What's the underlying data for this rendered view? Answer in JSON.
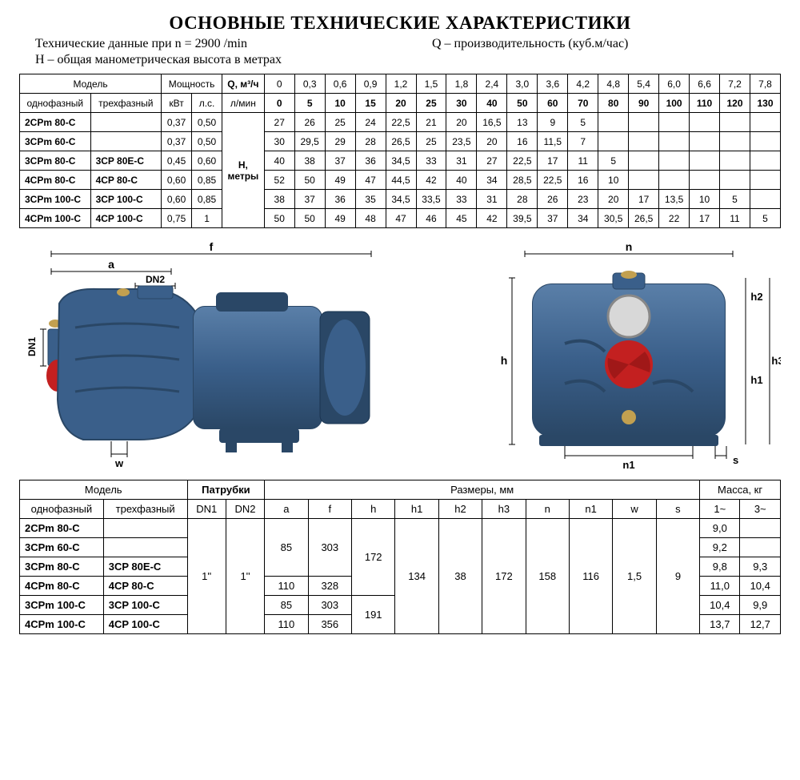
{
  "title": "ОСНОВНЫЕ ТЕХНИЧЕСКИЕ ХАРАКТЕРИСТИКИ",
  "subtitle_left": "Технические данные при n = 2900 /min",
  "subtitle_right": "Q – производительность (куб.м/час)",
  "subtitle2": "H – общая манометрическая высота в метрах",
  "table1": {
    "hdr_model": "Модель",
    "hdr_power": "Мощность",
    "hdr_q_unit1": "Q, м³/ч",
    "hdr_q_unit2": "л/мин",
    "hdr_single": "однофазный",
    "hdr_three": "трехфазный",
    "hdr_kw": "кВт",
    "hdr_hp": "л.с.",
    "hdr_h": "H,",
    "hdr_h2": "метры",
    "q_m3h": [
      "0",
      "0,3",
      "0,6",
      "0,9",
      "1,2",
      "1,5",
      "1,8",
      "2,4",
      "3,0",
      "3,6",
      "4,2",
      "4,8",
      "5,4",
      "6,0",
      "6,6",
      "7,2",
      "7,8"
    ],
    "q_lmin": [
      "0",
      "5",
      "10",
      "15",
      "20",
      "25",
      "30",
      "40",
      "50",
      "60",
      "70",
      "80",
      "90",
      "100",
      "110",
      "120",
      "130"
    ],
    "rows": [
      {
        "m1": "2CPm 80-C",
        "m3": "",
        "kw": "0,37",
        "hp": "0,50",
        "v": [
          "27",
          "26",
          "25",
          "24",
          "22,5",
          "21",
          "20",
          "16,5",
          "13",
          "9",
          "5",
          "",
          "",
          "",
          "",
          "",
          ""
        ]
      },
      {
        "m1": "3CPm 60-C",
        "m3": "",
        "kw": "0,37",
        "hp": "0,50",
        "v": [
          "30",
          "29,5",
          "29",
          "28",
          "26,5",
          "25",
          "23,5",
          "20",
          "16",
          "11,5",
          "7",
          "",
          "",
          "",
          "",
          "",
          ""
        ]
      },
      {
        "m1": "3CPm 80-C",
        "m3": "3CP 80E-C",
        "kw": "0,45",
        "hp": "0,60",
        "v": [
          "40",
          "38",
          "37",
          "36",
          "34,5",
          "33",
          "31",
          "27",
          "22,5",
          "17",
          "11",
          "5",
          "",
          "",
          "",
          "",
          ""
        ]
      },
      {
        "m1": "4CPm 80-C",
        "m3": "4CP 80-C",
        "kw": "0,60",
        "hp": "0,85",
        "v": [
          "52",
          "50",
          "49",
          "47",
          "44,5",
          "42",
          "40",
          "34",
          "28,5",
          "22,5",
          "16",
          "10",
          "",
          "",
          "",
          "",
          ""
        ]
      },
      {
        "m1": "3CPm 100-C",
        "m3": "3CP 100-C",
        "kw": "0,60",
        "hp": "0,85",
        "v": [
          "38",
          "37",
          "36",
          "35",
          "34,5",
          "33,5",
          "33",
          "31",
          "28",
          "26",
          "23",
          "20",
          "17",
          "13,5",
          "10",
          "5",
          ""
        ]
      },
      {
        "m1": "4CPm 100-C",
        "m3": "4CP 100-C",
        "kw": "0,75",
        "hp": "1",
        "v": [
          "50",
          "50",
          "49",
          "48",
          "47",
          "46",
          "45",
          "42",
          "39,5",
          "37",
          "34",
          "30,5",
          "26,5",
          "22",
          "17",
          "11",
          "5"
        ]
      }
    ]
  },
  "table2": {
    "hdr_model": "Модель",
    "hdr_pipes": "Патрубки",
    "hdr_dims": "Размеры, мм",
    "hdr_mass": "Масса, кг",
    "hdr_single": "однофазный",
    "hdr_three": "трехфазный",
    "cols_pipes": [
      "DN1",
      "DN2"
    ],
    "cols_dims": [
      "a",
      "f",
      "h",
      "h1",
      "h2",
      "h3",
      "n",
      "n1",
      "w",
      "s"
    ],
    "cols_mass": [
      "1~",
      "3~"
    ],
    "dn1": "1''",
    "dn2": "1''",
    "shared": {
      "h1": "134",
      "h2": "38",
      "h3": "172",
      "n": "158",
      "n1": "116",
      "w": "1,5",
      "s": "9"
    },
    "rows": [
      {
        "m1": "2CPm 80-C",
        "m3": "",
        "a": "85",
        "f": "303",
        "h": "172",
        "mass1": "9,0",
        "mass3": ""
      },
      {
        "m1": "3CPm 60-C",
        "m3": "",
        "a": "85",
        "f": "303",
        "h": "172",
        "mass1": "9,2",
        "mass3": ""
      },
      {
        "m1": "3CPm 80-C",
        "m3": "3CP 80E-C",
        "a": "85",
        "f": "303",
        "h": "172",
        "mass1": "9,8",
        "mass3": "9,3"
      },
      {
        "m1": "4CPm 80-C",
        "m3": "4CP 80-C",
        "a": "110",
        "f": "328",
        "h": "172",
        "mass1": "11,0",
        "mass3": "10,4"
      },
      {
        "m1": "3CPm 100-C",
        "m3": "3CP 100-C",
        "a": "85",
        "f": "303",
        "h": "191",
        "mass1": "10,4",
        "mass3": "9,9"
      },
      {
        "m1": "4CPm 100-C",
        "m3": "4CP 100-C",
        "a": "110",
        "f": "356",
        "h": "191",
        "mass1": "13,7",
        "mass3": "12,7"
      }
    ]
  },
  "diag": {
    "labels": {
      "f": "f",
      "a": "a",
      "DN1": "DN1",
      "DN2": "DN2",
      "w": "w",
      "n": "n",
      "h": "h",
      "h1": "h1",
      "h2": "h2",
      "h3": "h3",
      "n1": "n1",
      "s": "s"
    },
    "colors": {
      "body": "#3a5f8a",
      "body_dark": "#2a4766",
      "body_light": "#5a7fa8",
      "cap": "#c2a050",
      "red": "#c32020",
      "line": "#000"
    }
  }
}
